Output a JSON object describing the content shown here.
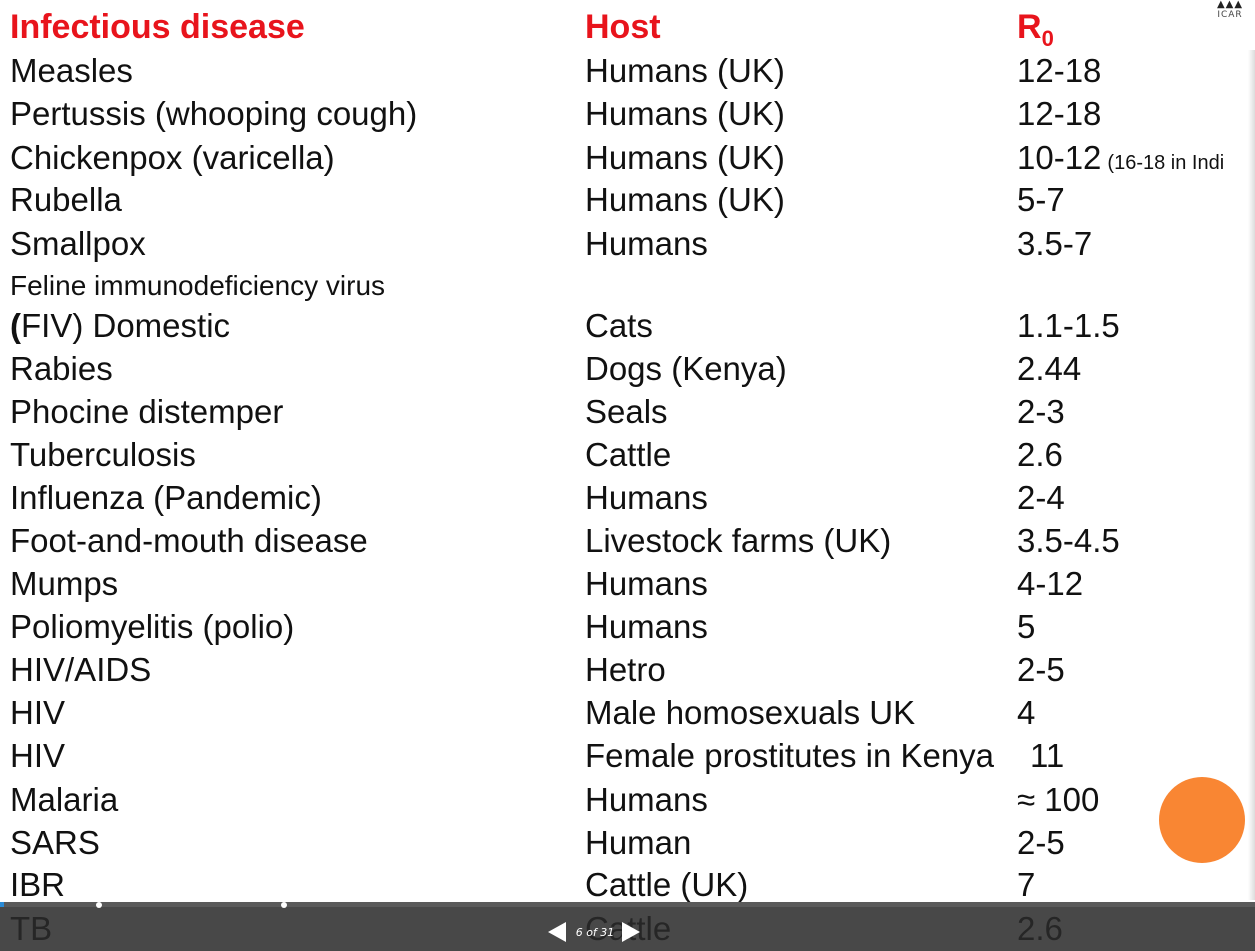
{
  "table": {
    "headers": {
      "disease": "Infectious disease",
      "host": "Host",
      "r0_base": "R",
      "r0_sub": "0"
    },
    "rows": [
      {
        "disease": "Measles",
        "host": "Humans (UK)",
        "r0": "12-18"
      },
      {
        "disease": "Pertussis (whooping cough)",
        "host": "Humans (UK)",
        "r0": "12-18"
      },
      {
        "disease": "Chickenpox (varicella)",
        "host": "Humans (UK)",
        "r0": "10-12",
        "r0_note": "(16-18 in Indi"
      },
      {
        "disease": "Rubella",
        "host": "Humans (UK)",
        "r0": "5-7"
      },
      {
        "disease": "Smallpox",
        "host": "Humans",
        "r0": "3.5-7"
      },
      {
        "disease": "Feline immunodeficiency virus",
        "host": "",
        "r0": ""
      },
      {
        "disease_paren": "(",
        "disease": "FIV) Domestic",
        "host": "Cats",
        "r0": "1.1-1.5"
      },
      {
        "disease": "Rabies",
        "host": "Dogs (Kenya)",
        "r0": "2.44"
      },
      {
        "disease": "Phocine distemper",
        "host": "Seals",
        "r0": "2-3"
      },
      {
        "disease": "Tuberculosis",
        "host": "Cattle",
        "r0": "2.6"
      },
      {
        "disease": "Influenza (Pandemic)",
        "host": "Humans",
        "r0": "2-4"
      },
      {
        "disease": "Foot-and-mouth disease",
        "host": "Livestock farms (UK)",
        "r0": "3.5-4.5"
      },
      {
        "disease": "Mumps",
        "host": "Humans",
        "r0": "4-12"
      },
      {
        "disease": "Poliomyelitis (polio)",
        "host": "Humans",
        "r0": "5"
      },
      {
        "disease": "HIV/AIDS",
        "host": "Hetro",
        "r0": "2-5"
      },
      {
        "disease": "HIV",
        "host": "Male homosexuals UK",
        "r0": "4"
      },
      {
        "disease": "HIV",
        "host": "Female prostitutes in Kenya",
        "r0": "11"
      },
      {
        "disease": "Malaria",
        "host": "Humans",
        "r0": "≈ 100"
      },
      {
        "disease": "SARS",
        "host": "Human",
        "r0": "2-5"
      },
      {
        "disease": "IBR",
        "host": "Cattle (UK)",
        "r0": "7"
      },
      {
        "disease": "TB",
        "host": "Cattle",
        "r0": "2.6"
      }
    ]
  },
  "logo": {
    "line1": "ICAR",
    "icon": "institution-logo-icon"
  },
  "viewer": {
    "page_counter": "6 of 31",
    "current_page": 6,
    "total_pages": 31,
    "prev_icon": "triangle-left-icon",
    "next_icon": "triangle-right-icon",
    "accent_color": "#2a8bd6"
  },
  "colors": {
    "header": "#e8141c",
    "body_text": "#111111",
    "circle": "#f98633",
    "bar": "#2a2a2a"
  }
}
